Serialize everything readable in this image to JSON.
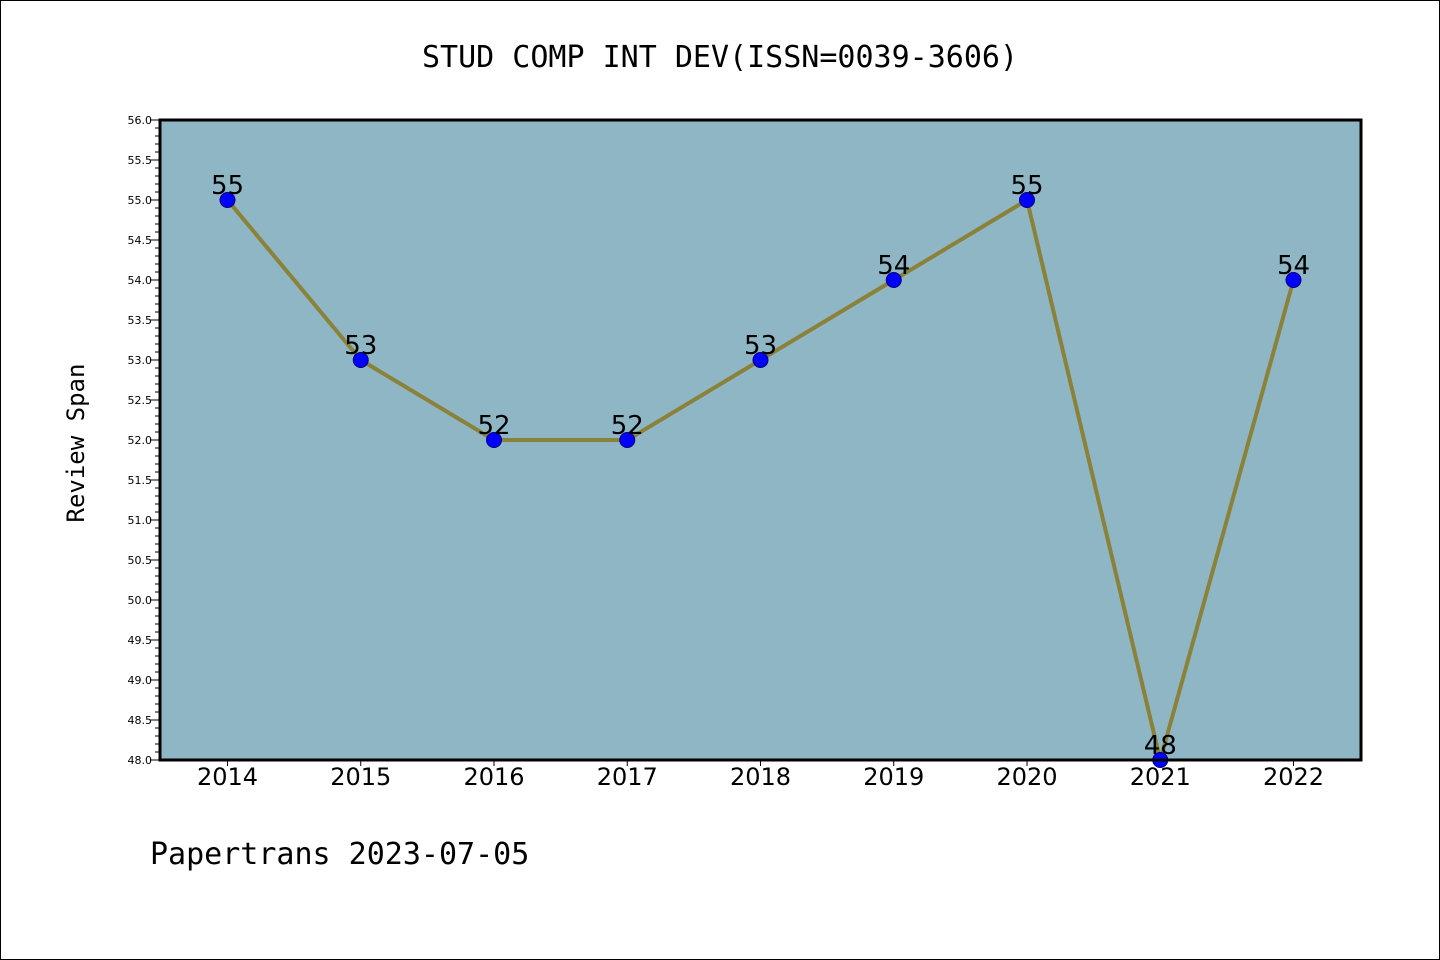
{
  "chart_data": {
    "type": "line",
    "title": "STUD COMP INT DEV(ISSN=0039-3606)",
    "xlabel": "",
    "ylabel": "Review Span",
    "footer": "Papertrans 2023-07-05",
    "categories": [
      "2014",
      "2015",
      "2016",
      "2017",
      "2018",
      "2019",
      "2020",
      "2021",
      "2022"
    ],
    "series": [
      {
        "values": [
          55,
          53,
          52,
          52,
          53,
          54,
          55,
          48,
          54
        ]
      }
    ],
    "data_labels": [
      "55",
      "53",
      "52",
      "52",
      "53",
      "54",
      "55",
      "48",
      "54"
    ],
    "ylim": [
      48.0,
      56.0
    ],
    "yticks": [
      "48.0",
      "48.5",
      "49.0",
      "49.5",
      "50.0",
      "50.5",
      "51.0",
      "51.5",
      "52.0",
      "52.5",
      "53.0",
      "53.5",
      "54.0",
      "54.5",
      "55.0",
      "55.5",
      "56.0"
    ],
    "grid": false,
    "colors": {
      "plot_background": "#8fb6c4",
      "line": "#8a8238",
      "marker": "#0000ff"
    }
  }
}
